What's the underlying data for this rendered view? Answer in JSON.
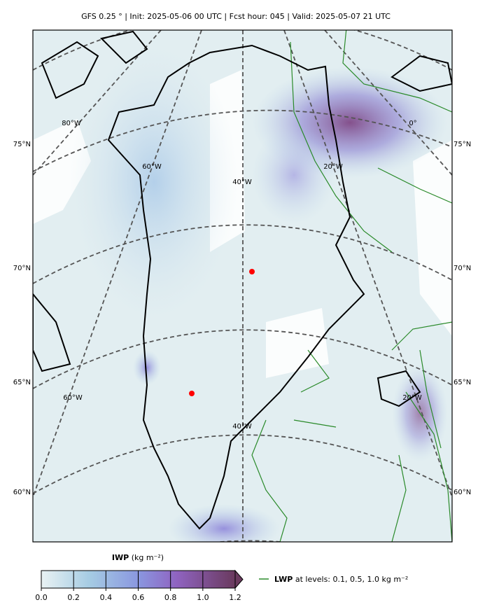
{
  "header": {
    "title": "GFS 0.25 ° | Init: 2025-05-06 00 UTC | Fcst hour: 045 | Valid: 2025-05-07 21 UTC"
  },
  "map": {
    "lat_labels": [
      "75°N",
      "70°N",
      "65°N",
      "60°N"
    ],
    "lon_labels_top": [
      "80°W",
      "60°W",
      "40°W",
      "20°W",
      "0°"
    ],
    "lon_labels_bottom": [
      "60°W",
      "40°W",
      "20°W"
    ]
  },
  "colorbar": {
    "name": "IWP",
    "unit": "(kg m⁻²)",
    "lim": [
      0,
      1.2
    ],
    "ticks": [
      {
        "value": 0,
        "label": "0.0"
      },
      0.2,
      0.4,
      0.6,
      0.8,
      {
        "value": 1,
        "label": "1.0"
      },
      1.2
    ]
  },
  "legend": {
    "name": "LWP",
    "text": "at levels: 0.1, 0.5, 1.0  kg m⁻²"
  }
}
